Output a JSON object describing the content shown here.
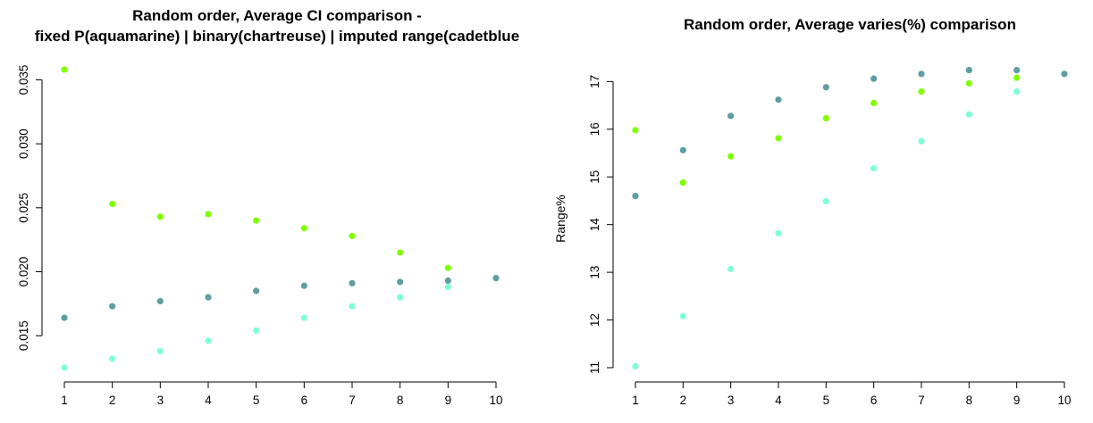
{
  "chart_data": [
    {
      "type": "scatter",
      "title_lines": [
        "Random order, Average CI comparison -",
        "fixed P(aquamarine) | binary(chartreuse) | imputed range(cadetblue"
      ],
      "xlabel": "",
      "ylabel": "",
      "x_ticks": [
        "1",
        "2",
        "3",
        "4",
        "5",
        "6",
        "7",
        "8",
        "9",
        "10"
      ],
      "y_ticks": [
        "0.015",
        "0.020",
        "0.025",
        "0.030",
        "0.035"
      ],
      "xlim": [
        1,
        10
      ],
      "ylim": [
        0.0125,
        0.0358
      ],
      "grid": false,
      "series": [
        {
          "color": "#7FFFD4",
          "x": [
            1,
            2,
            3,
            4,
            5,
            6,
            7,
            8,
            9
          ],
          "y": [
            0.0125,
            0.0132,
            0.0138,
            0.0146,
            0.0154,
            0.0164,
            0.0173,
            0.018,
            0.0188
          ]
        },
        {
          "color": "#7FFF00",
          "x": [
            1,
            2,
            3,
            4,
            5,
            6,
            7,
            8,
            9
          ],
          "y": [
            0.0358,
            0.0253,
            0.0243,
            0.0245,
            0.024,
            0.0234,
            0.0228,
            0.0215,
            0.0203
          ]
        },
        {
          "color": "#5F9EA0",
          "x": [
            1,
            2,
            3,
            4,
            5,
            6,
            7,
            8,
            9,
            10
          ],
          "y": [
            0.0164,
            0.0173,
            0.0177,
            0.018,
            0.0185,
            0.0189,
            0.0191,
            0.0192,
            0.0193,
            0.0195
          ]
        }
      ]
    },
    {
      "type": "scatter",
      "title_lines": [
        "Random order, Average varies(%) comparison"
      ],
      "xlabel": "",
      "ylabel": "Range%",
      "x_ticks": [
        "1",
        "2",
        "3",
        "4",
        "5",
        "6",
        "7",
        "8",
        "9",
        "10"
      ],
      "y_ticks": [
        "11",
        "12",
        "13",
        "14",
        "15",
        "16",
        "17"
      ],
      "xlim": [
        1,
        10
      ],
      "ylim": [
        11.0,
        17.25
      ],
      "grid": false,
      "series": [
        {
          "color": "#7FFFD4",
          "x": [
            1,
            2,
            3,
            4,
            5,
            6,
            7,
            8,
            9
          ],
          "y": [
            11.03,
            12.08,
            13.07,
            13.82,
            14.49,
            15.18,
            15.75,
            16.31,
            16.79
          ]
        },
        {
          "color": "#7FFF00",
          "x": [
            1,
            2,
            3,
            4,
            5,
            6,
            7,
            8,
            9
          ],
          "y": [
            15.98,
            14.88,
            15.43,
            15.81,
            16.23,
            16.55,
            16.79,
            16.96,
            17.08
          ]
        },
        {
          "color": "#5F9EA0",
          "x": [
            1,
            2,
            3,
            4,
            5,
            6,
            7,
            8,
            9,
            10
          ],
          "y": [
            14.6,
            15.56,
            16.28,
            16.62,
            16.88,
            17.06,
            17.16,
            17.24,
            17.24,
            17.16
          ]
        }
      ]
    }
  ]
}
